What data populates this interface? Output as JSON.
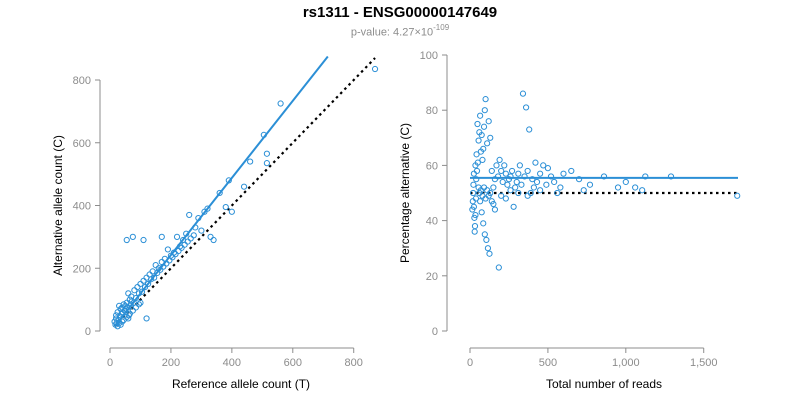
{
  "title": "rs1311 - ENSG00000147649",
  "subtitle": {
    "prefix": "p-value: 4.27×10",
    "exponent": "-109"
  },
  "colors": {
    "points": "#2b8fd6",
    "fit_line": "#2b8fd6",
    "null_line": "#000000",
    "axis": "#8c8c8c"
  },
  "chart_data": [
    {
      "type": "scatter",
      "xlabel": "Reference allele count (T)",
      "ylabel": "Alternative allele count (C)",
      "xlim": [
        0,
        860
      ],
      "ylim": [
        0,
        800
      ],
      "xticks": [
        0,
        200,
        400,
        600,
        800
      ],
      "xtick_labels": [
        "0",
        "200",
        "400",
        "600",
        "800"
      ],
      "yticks": [
        0,
        200,
        400,
        600,
        800
      ],
      "ytick_labels": [
        "0",
        "200",
        "400",
        "600",
        "800"
      ],
      "grid": false,
      "fit_line": {
        "style": "solid",
        "x": [
          15,
          715
        ],
        "y": [
          15,
          875
        ]
      },
      "null_line": {
        "style": "dotted",
        "x": [
          15,
          870
        ],
        "y": [
          15,
          870
        ]
      },
      "points": [
        [
          870,
          835
        ],
        [
          560,
          725
        ],
        [
          505,
          625
        ],
        [
          515,
          565
        ],
        [
          515,
          535
        ],
        [
          460,
          540
        ],
        [
          390,
          480
        ],
        [
          440,
          460
        ],
        [
          360,
          440
        ],
        [
          380,
          395
        ],
        [
          400,
          380
        ],
        [
          320,
          390
        ],
        [
          310,
          380
        ],
        [
          290,
          360
        ],
        [
          260,
          370
        ],
        [
          280,
          330
        ],
        [
          300,
          320
        ],
        [
          330,
          300
        ],
        [
          340,
          290
        ],
        [
          250,
          310
        ],
        [
          240,
          290
        ],
        [
          220,
          300
        ],
        [
          230,
          270
        ],
        [
          210,
          250
        ],
        [
          200,
          240
        ],
        [
          190,
          260
        ],
        [
          180,
          230
        ],
        [
          170,
          220
        ],
        [
          160,
          200
        ],
        [
          150,
          210
        ],
        [
          140,
          190
        ],
        [
          130,
          180
        ],
        [
          120,
          170
        ],
        [
          110,
          160
        ],
        [
          100,
          150
        ],
        [
          90,
          140
        ],
        [
          80,
          130
        ],
        [
          75,
          300
        ],
        [
          55,
          290
        ],
        [
          110,
          290
        ],
        [
          170,
          300
        ],
        [
          60,
          120
        ],
        [
          70,
          110
        ],
        [
          65,
          100
        ],
        [
          55,
          90
        ],
        [
          50,
          80
        ],
        [
          45,
          85
        ],
        [
          40,
          75
        ],
        [
          35,
          70
        ],
        [
          30,
          80
        ],
        [
          25,
          60
        ],
        [
          20,
          50
        ],
        [
          20,
          40
        ],
        [
          15,
          30
        ],
        [
          18,
          20
        ],
        [
          22,
          25
        ],
        [
          28,
          35
        ],
        [
          32,
          45
        ],
        [
          38,
          55
        ],
        [
          42,
          60
        ],
        [
          48,
          65
        ],
        [
          52,
          70
        ],
        [
          58,
          75
        ],
        [
          62,
          50
        ],
        [
          68,
          85
        ],
        [
          72,
          95
        ],
        [
          78,
          90
        ],
        [
          85,
          105
        ],
        [
          95,
          120
        ],
        [
          105,
          125
        ],
        [
          115,
          140
        ],
        [
          125,
          150
        ],
        [
          135,
          165
        ],
        [
          145,
          170
        ],
        [
          155,
          185
        ],
        [
          165,
          195
        ],
        [
          175,
          205
        ],
        [
          185,
          215
        ],
        [
          195,
          225
        ],
        [
          205,
          235
        ],
        [
          215,
          245
        ],
        [
          225,
          255
        ],
        [
          235,
          265
        ],
        [
          245,
          275
        ],
        [
          255,
          285
        ],
        [
          265,
          295
        ],
        [
          275,
          305
        ],
        [
          120,
          40
        ],
        [
          60,
          40
        ],
        [
          40,
          30
        ],
        [
          30,
          25
        ],
        [
          25,
          15
        ],
        [
          35,
          20
        ],
        [
          45,
          35
        ],
        [
          55,
          45
        ],
        [
          65,
          55
        ],
        [
          75,
          65
        ],
        [
          85,
          75
        ],
        [
          95,
          85
        ],
        [
          100,
          90
        ]
      ]
    },
    {
      "type": "scatter",
      "xlabel": "Total number of reads",
      "ylabel": "Percentage alternative (C)",
      "xlim": [
        0,
        1720
      ],
      "ylim": [
        0,
        100
      ],
      "xticks": [
        0,
        500,
        1000,
        1500
      ],
      "xtick_labels": [
        "0",
        "500",
        "1,000",
        "1,500"
      ],
      "yticks": [
        0,
        20,
        40,
        60,
        80,
        100
      ],
      "ytick_labels": [
        "0",
        "20",
        "40",
        "60",
        "80",
        "100"
      ],
      "grid": false,
      "fit_line": {
        "style": "solid",
        "y": 55.5
      },
      "null_line": {
        "style": "dotted",
        "y": 50
      },
      "points": [
        [
          1715,
          49
        ],
        [
          1290,
          56
        ],
        [
          1125,
          56
        ],
        [
          1105,
          51
        ],
        [
          1060,
          52
        ],
        [
          1000,
          54
        ],
        [
          950,
          52
        ],
        [
          860,
          56
        ],
        [
          770,
          53
        ],
        [
          730,
          51
        ],
        [
          700,
          55
        ],
        [
          650,
          58
        ],
        [
          600,
          57
        ],
        [
          580,
          52
        ],
        [
          560,
          50
        ],
        [
          540,
          54
        ],
        [
          520,
          56
        ],
        [
          500,
          59
        ],
        [
          490,
          53
        ],
        [
          470,
          60
        ],
        [
          450,
          57
        ],
        [
          430,
          54
        ],
        [
          420,
          61
        ],
        [
          410,
          52
        ],
        [
          400,
          55
        ],
        [
          390,
          50
        ],
        [
          380,
          73
        ],
        [
          370,
          58
        ],
        [
          360,
          81
        ],
        [
          350,
          56
        ],
        [
          340,
          86
        ],
        [
          330,
          53
        ],
        [
          320,
          60
        ],
        [
          310,
          57
        ],
        [
          300,
          54
        ],
        [
          290,
          52
        ],
        [
          280,
          45
        ],
        [
          270,
          58
        ],
        [
          260,
          56
        ],
        [
          250,
          55
        ],
        [
          240,
          53
        ],
        [
          230,
          57
        ],
        [
          220,
          60
        ],
        [
          210,
          54
        ],
        [
          200,
          58
        ],
        [
          190,
          62
        ],
        [
          180,
          56
        ],
        [
          170,
          60
        ],
        [
          160,
          55
        ],
        [
          150,
          52
        ],
        [
          140,
          58
        ],
        [
          130,
          70
        ],
        [
          120,
          76
        ],
        [
          110,
          68
        ],
        [
          100,
          84
        ],
        [
          95,
          80
        ],
        [
          90,
          74
        ],
        [
          85,
          66
        ],
        [
          80,
          62
        ],
        [
          75,
          71
        ],
        [
          70,
          65
        ],
        [
          65,
          78
        ],
        [
          60,
          72
        ],
        [
          55,
          69
        ],
        [
          50,
          61
        ],
        [
          48,
          75
        ],
        [
          45,
          58
        ],
        [
          42,
          64
        ],
        [
          40,
          55
        ],
        [
          38,
          48
        ],
        [
          35,
          42
        ],
        [
          32,
          38
        ],
        [
          30,
          36
        ],
        [
          28,
          41
        ],
        [
          25,
          45
        ],
        [
          22,
          53
        ],
        [
          20,
          50
        ],
        [
          18,
          47
        ],
        [
          15,
          44
        ],
        [
          25,
          57
        ],
        [
          35,
          60
        ],
        [
          55,
          52
        ],
        [
          65,
          47
        ],
        [
          75,
          43
        ],
        [
          85,
          39
        ],
        [
          95,
          35
        ],
        [
          105,
          33
        ],
        [
          115,
          30
        ],
        [
          125,
          28
        ],
        [
          185,
          23
        ],
        [
          60,
          50
        ],
        [
          70,
          51
        ],
        [
          80,
          49
        ],
        [
          90,
          52
        ],
        [
          100,
          48
        ],
        [
          110,
          51
        ],
        [
          120,
          49
        ],
        [
          130,
          50
        ],
        [
          140,
          47
        ],
        [
          150,
          46
        ],
        [
          160,
          44
        ],
        [
          200,
          49
        ],
        [
          230,
          48
        ],
        [
          260,
          51
        ],
        [
          310,
          50
        ],
        [
          370,
          49
        ],
        [
          450,
          51
        ]
      ]
    }
  ]
}
